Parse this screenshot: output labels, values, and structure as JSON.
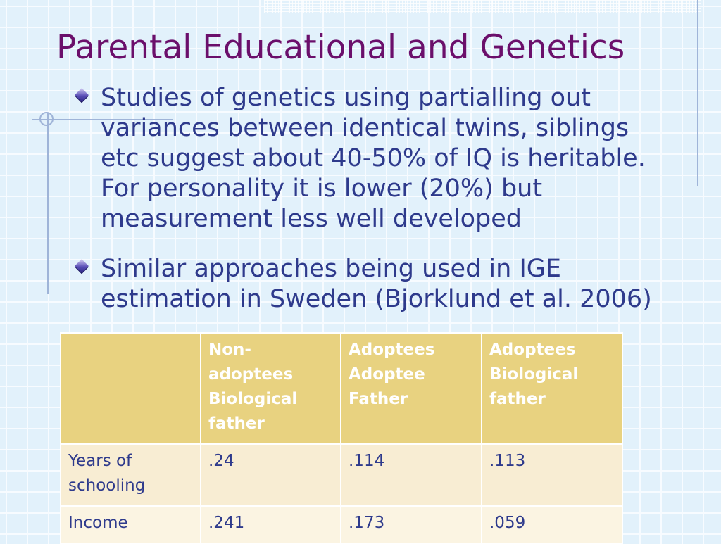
{
  "slide": {
    "title": "Parental Educational and Genetics",
    "bullets": [
      "Studies of genetics using partialling out variances between identical twins, siblings etc suggest about 40-50% of IQ is heritable. For personality it is lower (20%) but measurement less well developed",
      "Similar approaches being used in IGE estimation in Sweden (Bjorklund et al. 2006)"
    ]
  },
  "table": {
    "headers": [
      "",
      "Non-adoptees Biological father",
      "Adoptees Adoptee Father",
      "Adoptees Biological father"
    ],
    "rows": [
      [
        "Years of schooling",
        ".24",
        ".114",
        ".113"
      ],
      [
        "Income",
        ".241",
        ".173",
        ".059"
      ]
    ]
  },
  "colors": {
    "title": "#6b0f6b",
    "body_text": "#2e3a8c",
    "header_fill": "#e8d280",
    "row1_fill": "#f8edd3",
    "row2_fill": "#fbf4e2",
    "background": "#e2f1fb"
  }
}
